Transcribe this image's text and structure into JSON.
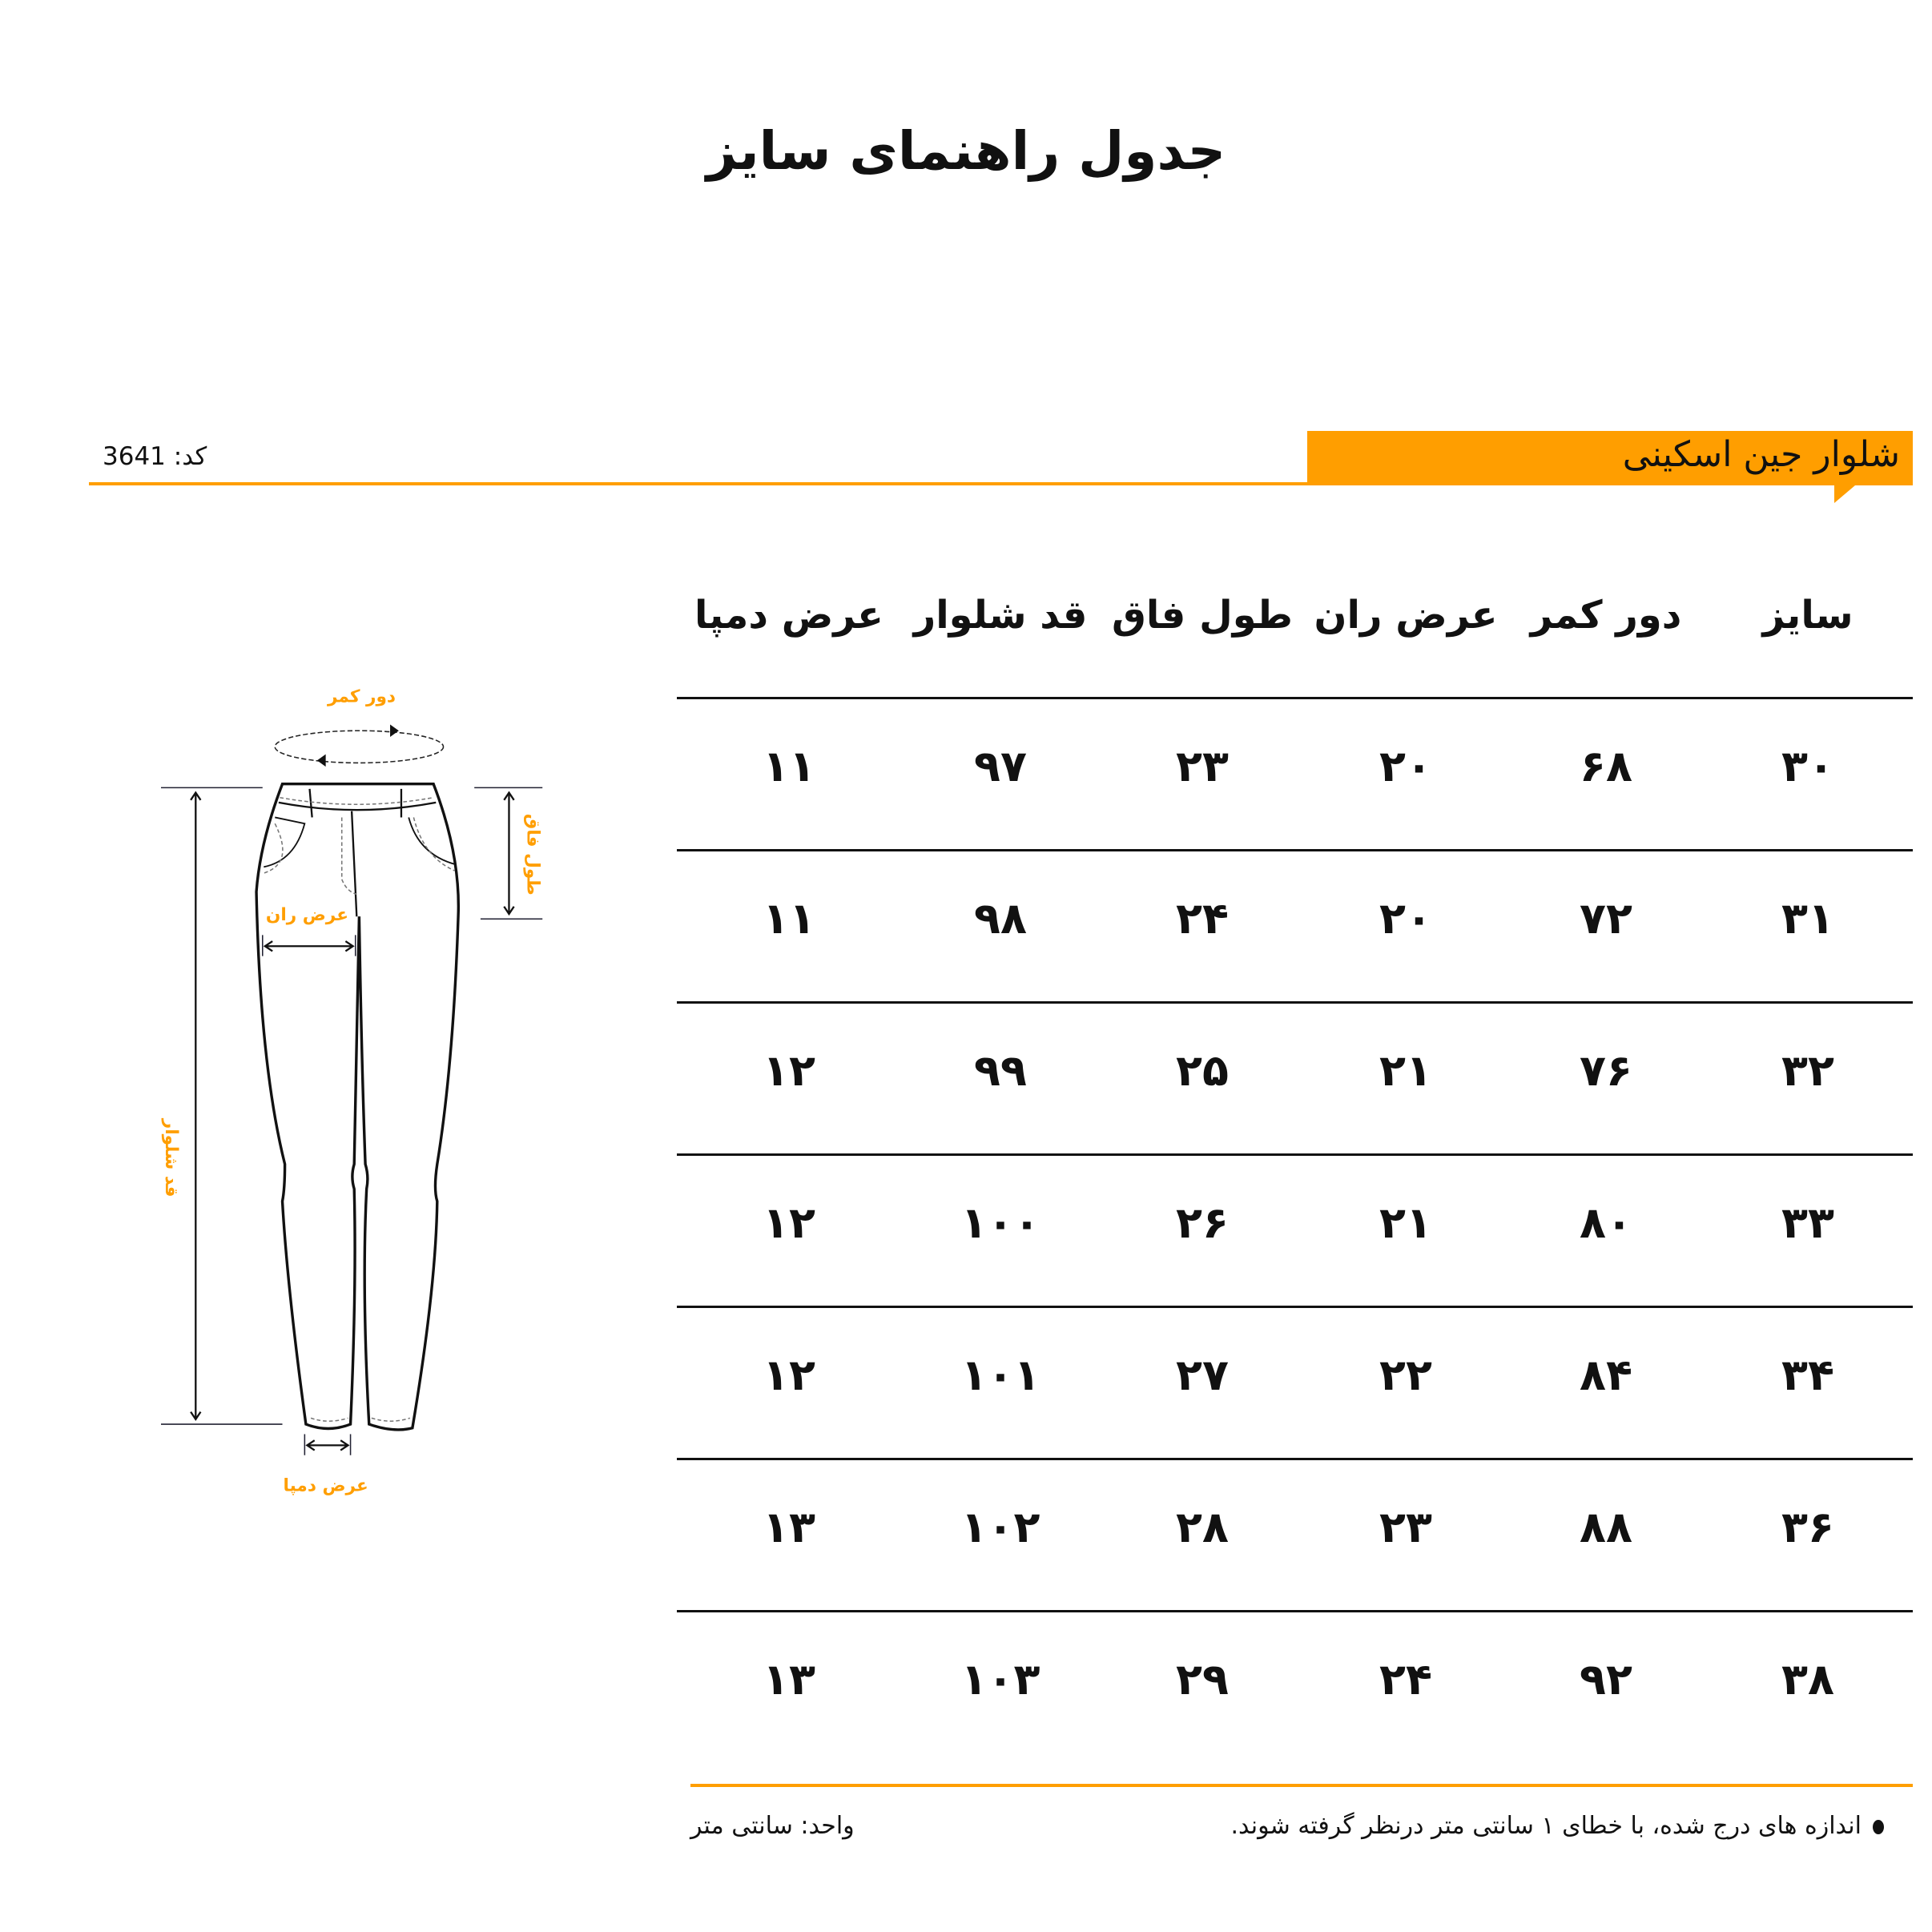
{
  "title": "جدول راهنمای سایز",
  "product": {
    "name": "شلوار جین اسکینی",
    "code": "کد: 3641"
  },
  "colors": {
    "accent": "#ff9e00",
    "text": "#111111"
  },
  "table": {
    "headers": [
      "سایز",
      "دور کمر",
      "عرض ران",
      "طول فاق",
      "قد شلوار",
      "عرض دمپا"
    ],
    "rows": [
      [
        "۳۰",
        "۶۸",
        "۲۰",
        "۲۳",
        "۹۷",
        "۱۱"
      ],
      [
        "۳۱",
        "۷۲",
        "۲۰",
        "۲۴",
        "۹۸",
        "۱۱"
      ],
      [
        "۳۲",
        "۷۶",
        "۲۱",
        "۲۵",
        "۹۹",
        "۱۲"
      ],
      [
        "۳۳",
        "۸۰",
        "۲۱",
        "۲۶",
        "۱۰۰",
        "۱۲"
      ],
      [
        "۳۴",
        "۸۴",
        "۲۲",
        "۲۷",
        "۱۰۱",
        "۱۲"
      ],
      [
        "۳۶",
        "۸۸",
        "۲۳",
        "۲۸",
        "۱۰۲",
        "۱۳"
      ],
      [
        "۳۸",
        "۹۲",
        "۲۴",
        "۲۹",
        "۱۰۳",
        "۱۳"
      ]
    ]
  },
  "diagram": {
    "waist": "دور کمر",
    "thigh": "عرض ران",
    "rise": "طول فاق",
    "length": "قد شلوار",
    "hem": "عرض دمپا"
  },
  "footer": {
    "note": "اندازه های درج شده، با خطای ۱ سانتی متر درنظر گرفته شوند.",
    "unit": "واحد: سانتی متر"
  }
}
